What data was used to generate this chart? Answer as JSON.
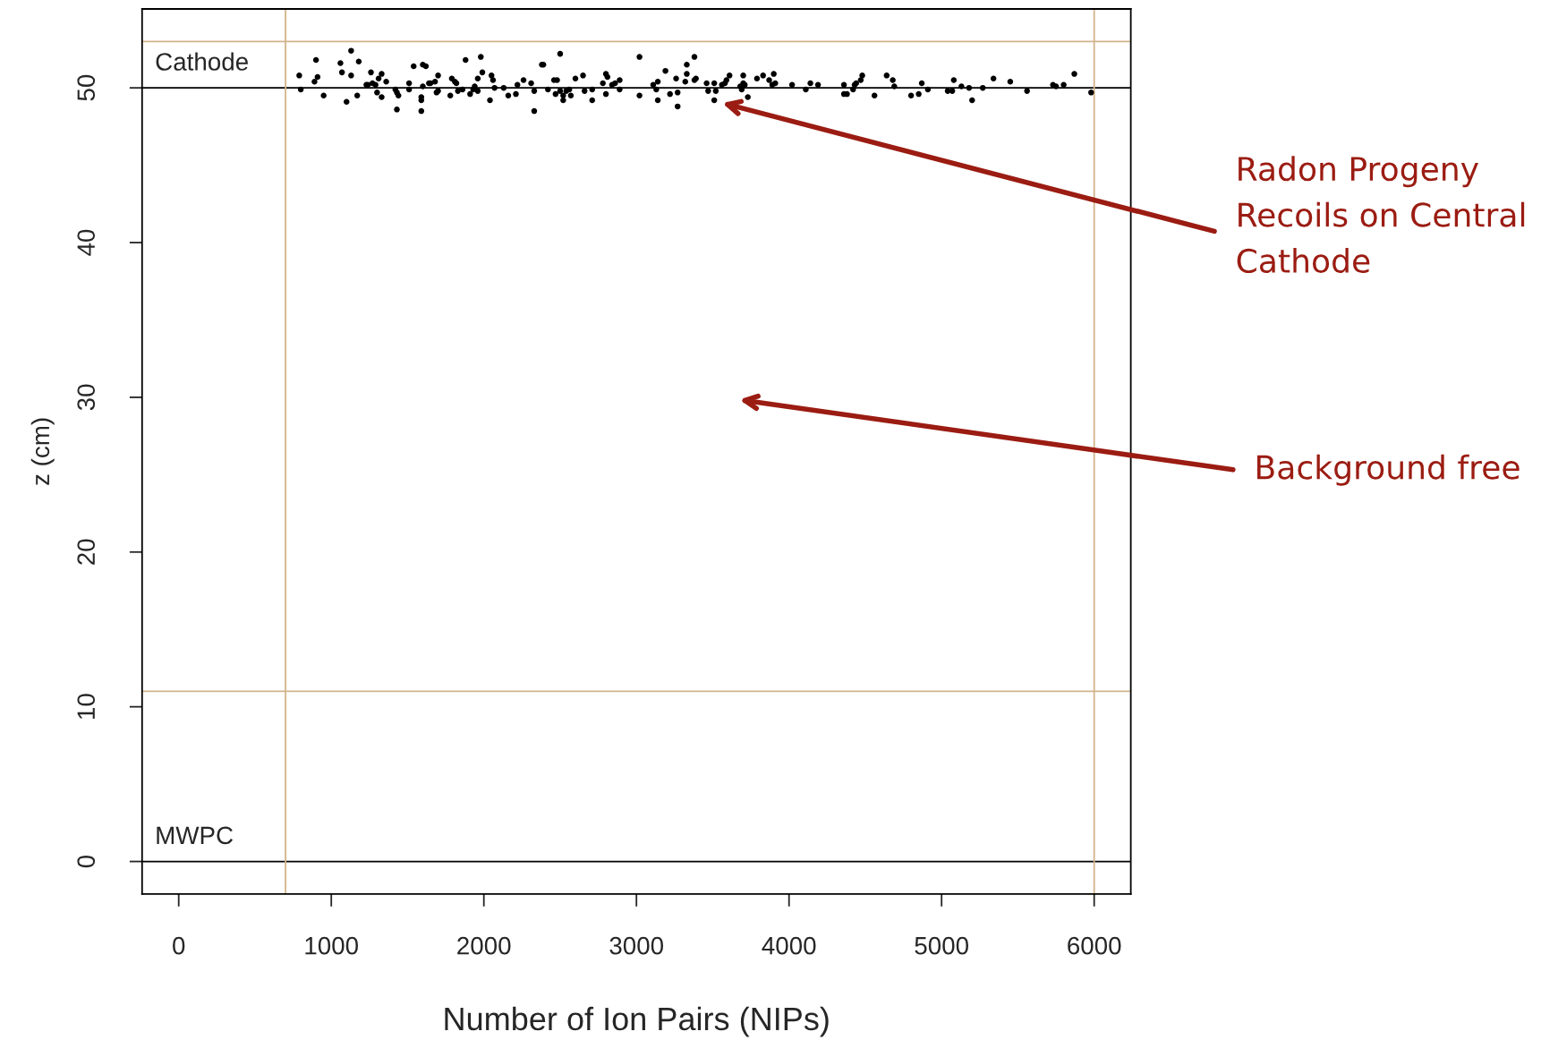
{
  "chart_data": {
    "type": "scatter",
    "xlabel": "Number of Ion Pairs (NIPs)",
    "ylabel": "z (cm)",
    "xlim": [
      -240,
      6240
    ],
    "ylim": [
      -2.1,
      55.1
    ],
    "xticks": [
      0,
      1000,
      2000,
      3000,
      4000,
      5000,
      6000
    ],
    "yticks": [
      0,
      10,
      20,
      30,
      40,
      50
    ],
    "grid": false,
    "marker": "circle",
    "series": [
      {
        "color": "#000000",
        "x": [
          790,
          800,
          900,
          890,
          910,
          950,
          1060,
          1070,
          1100,
          1130,
          1130,
          1170,
          1180,
          1260,
          1230,
          1240,
          1270,
          1290,
          1300,
          1310,
          1330,
          1330,
          1360,
          1420,
          1430,
          1440,
          1430,
          1510,
          1510,
          1540,
          1590,
          1590,
          1590,
          1600,
          1620,
          1600,
          1640,
          1650,
          1680,
          1700,
          1700,
          1690,
          1780,
          1790,
          1810,
          1820,
          1830,
          1860,
          1880,
          1910,
          1930,
          1940,
          1960,
          1960,
          1980,
          1990,
          2040,
          2050,
          2060,
          2070,
          2130,
          2160,
          2210,
          2220,
          2260,
          2310,
          2330,
          2330,
          2380,
          2390,
          2420,
          2460,
          2470,
          2480,
          2500,
          2500,
          2520,
          2520,
          2540,
          2560,
          2570,
          2600,
          2650,
          2660,
          2710,
          2710,
          2780,
          2800,
          2810,
          2800,
          2840,
          2860,
          2890,
          2890,
          3020,
          3020,
          3110,
          3130,
          3140,
          3140,
          3190,
          3220,
          3260,
          3270,
          3270,
          3320,
          3330,
          3330,
          3380,
          3380,
          3390,
          3460,
          3470,
          3510,
          3520,
          3510,
          3560,
          3580,
          3590,
          3610,
          3680,
          3690,
          3700,
          3700,
          3710,
          3730,
          3790,
          3830,
          3870,
          3900,
          3890,
          3910,
          4020,
          4110,
          4140,
          4190,
          4360,
          4360,
          4380,
          4420,
          4430,
          4440,
          4470,
          4480,
          4560,
          4640,
          4680,
          4690,
          4800,
          4850,
          4870,
          4910,
          5040,
          5070,
          5080,
          5130,
          5180,
          5200,
          5270,
          5340,
          5450,
          5560,
          5730,
          5750,
          5800,
          5870,
          5980
        ],
        "values": [
          50.8,
          49.9,
          51.8,
          50.4,
          50.7,
          49.5,
          51.6,
          51.0,
          49.1,
          52.4,
          50.8,
          49.5,
          51.7,
          51.0,
          50.2,
          50.2,
          50.3,
          50.2,
          49.7,
          50.6,
          50.9,
          49.4,
          50.4,
          49.9,
          49.7,
          49.5,
          48.6,
          50.3,
          49.9,
          51.4,
          49.4,
          49.2,
          48.5,
          51.5,
          51.4,
          50.1,
          50.3,
          50.3,
          50.4,
          49.8,
          50.8,
          49.7,
          49.5,
          50.6,
          50.4,
          50.3,
          49.8,
          49.9,
          51.8,
          49.6,
          49.9,
          50.1,
          49.8,
          50.6,
          52.0,
          51.0,
          49.2,
          50.8,
          50.5,
          50.0,
          50.0,
          49.5,
          49.6,
          50.2,
          50.5,
          50.3,
          49.8,
          48.5,
          51.5,
          51.5,
          49.9,
          50.5,
          49.6,
          50.5,
          52.2,
          49.8,
          49.5,
          49.2,
          49.8,
          49.9,
          49.5,
          50.6,
          50.8,
          49.8,
          49.9,
          49.2,
          50.3,
          50.9,
          50.7,
          49.6,
          50.2,
          50.3,
          50.5,
          49.9,
          52.0,
          49.5,
          50.2,
          49.9,
          50.4,
          49.2,
          51.1,
          49.6,
          50.6,
          49.7,
          48.8,
          50.4,
          50.9,
          51.5,
          52.0,
          50.5,
          50.6,
          50.3,
          49.8,
          50.3,
          49.8,
          49.2,
          50.2,
          50.3,
          50.5,
          50.8,
          50.1,
          49.9,
          50.3,
          50.8,
          50.2,
          49.4,
          50.6,
          50.8,
          50.5,
          50.9,
          50.2,
          50.3,
          50.2,
          49.9,
          50.3,
          50.2,
          50.2,
          49.6,
          49.6,
          49.9,
          50.2,
          50.3,
          50.5,
          50.8,
          49.5,
          50.8,
          50.5,
          50.1,
          49.5,
          49.6,
          50.3,
          49.9,
          49.8,
          49.8,
          50.5,
          50.1,
          50.0,
          49.2,
          50.0,
          50.6,
          50.4,
          49.8,
          50.2,
          50.1,
          50.2,
          50.9,
          49.7
        ]
      }
    ],
    "ref_lines": [
      {
        "axis": "y",
        "value": 50,
        "label": "Cathode",
        "color": "#000000"
      },
      {
        "axis": "y",
        "value": 0,
        "label": "MWPC",
        "color": "#000000"
      },
      {
        "axis": "y",
        "value": 53,
        "color": "#d2b48c"
      },
      {
        "axis": "y",
        "value": 11,
        "color": "#d2b48c"
      },
      {
        "axis": "x",
        "value": 700,
        "color": "#d2b48c"
      },
      {
        "axis": "x",
        "value": 6000,
        "color": "#d2b48c"
      }
    ],
    "annotations": [
      "Radon Progeny\nRecoils on Central\nCathode",
      "Background free"
    ]
  }
}
